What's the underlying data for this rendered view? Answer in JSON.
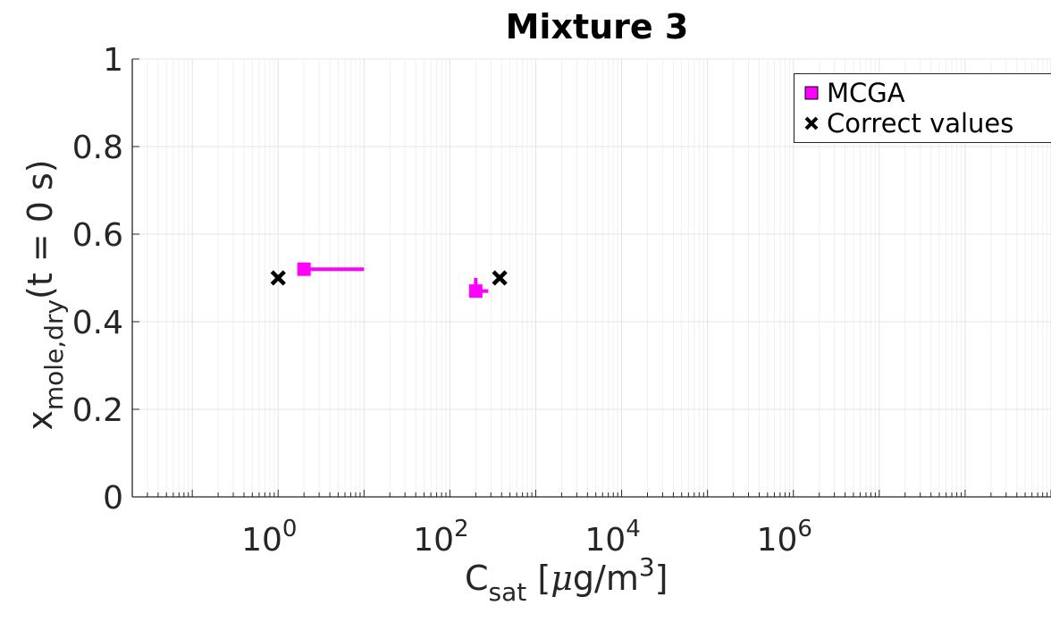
{
  "chart_data": {
    "type": "scatter",
    "title": "Mixture 3",
    "xlabel": {
      "main": "C",
      "sub": "sat",
      "units_pre": " [",
      "mu": "μ",
      "units_mid": "g/m",
      "units_sup": "3",
      "units_post": "]"
    },
    "ylabel": {
      "main": "x",
      "sub": "mole,dry",
      "rest": "(t = 0 s)"
    },
    "x_scale": "log",
    "xlim": [
      0.02,
      1000000000
    ],
    "ylim": [
      0,
      1
    ],
    "x_ticks": [
      {
        "value": 1,
        "base": "10",
        "exp": "0"
      },
      {
        "value": 100,
        "base": "10",
        "exp": "2"
      },
      {
        "value": 10000,
        "base": "10",
        "exp": "4"
      },
      {
        "value": 1000000,
        "base": "10",
        "exp": "6"
      }
    ],
    "y_ticks": [
      {
        "value": 0,
        "label": "0"
      },
      {
        "value": 0.2,
        "label": "0.2"
      },
      {
        "value": 0.4,
        "label": "0.4"
      },
      {
        "value": 0.6,
        "label": "0.6"
      },
      {
        "value": 0.8,
        "label": "0.8"
      },
      {
        "value": 1,
        "label": "1"
      }
    ],
    "grid": true,
    "legend_position": "top-right",
    "series": [
      {
        "name": "MCGA",
        "color": "#ff00ff",
        "marker": "square",
        "points": [
          {
            "x": 2,
            "y": 0.52,
            "x_err": [
              2,
              10
            ],
            "y_err": [
              0.505,
              0.535
            ]
          },
          {
            "x": 200,
            "y": 0.47,
            "x_err": [
              200,
              280
            ],
            "y_err": [
              0.465,
              0.5
            ]
          }
        ]
      },
      {
        "name": "Correct values",
        "color": "#000000",
        "marker": "x",
        "points": [
          {
            "x": 1,
            "y": 0.5
          },
          {
            "x": 380,
            "y": 0.5
          }
        ]
      }
    ]
  }
}
